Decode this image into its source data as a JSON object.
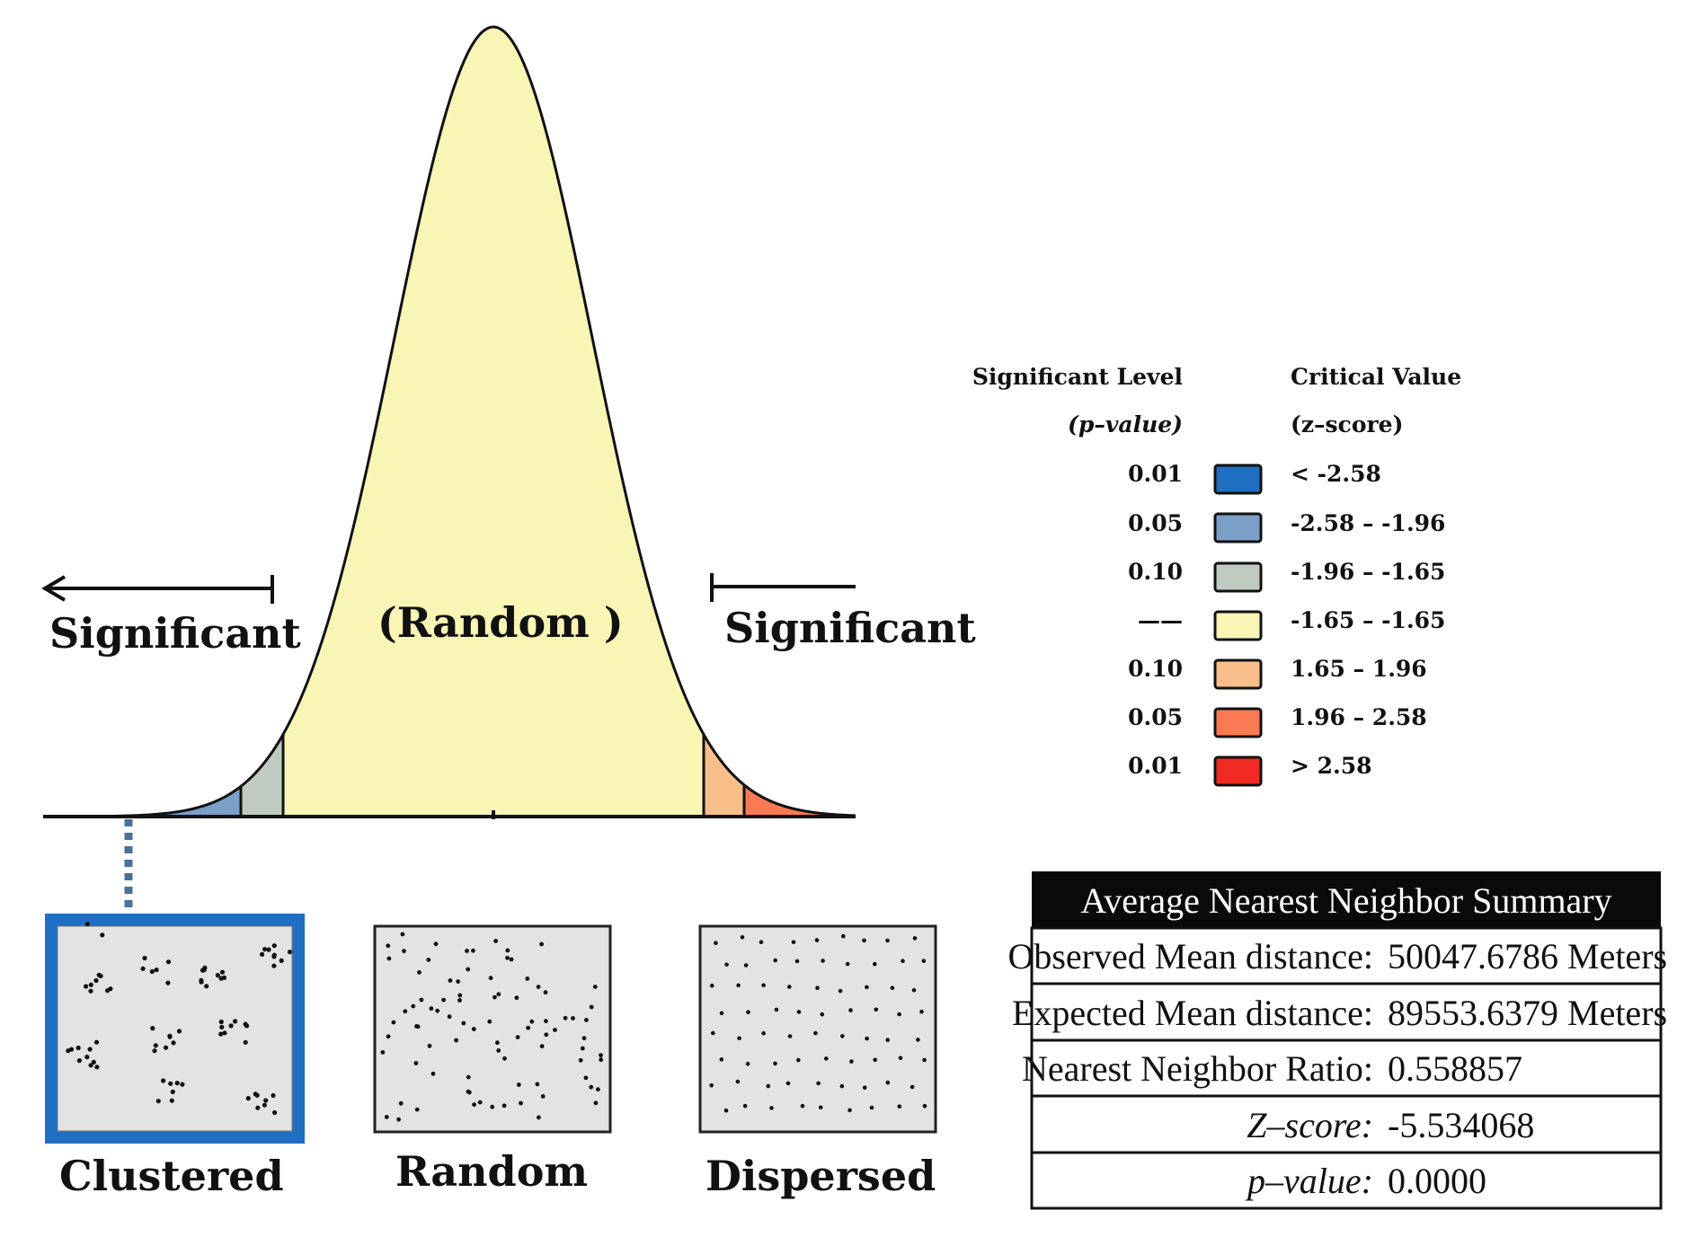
{
  "curve": {
    "center_label": "(Random )",
    "left_label": "Significant",
    "right_label": "Significant"
  },
  "legend": {
    "col1_header": "Significant Level",
    "col1_sub": "(p–value)",
    "col2_header": "Critical Value",
    "col2_sub": "(z–score)",
    "rows": [
      {
        "level": "0.01",
        "value": "< -2.58",
        "color": "#1f6fc3"
      },
      {
        "level": "0.05",
        "value": "-2.58 – -1.96",
        "color": "#7aa0c8"
      },
      {
        "level": "0.10",
        "value": "-1.96 – -1.65",
        "color": "#bfcbc0"
      },
      {
        "level": "——",
        "value": "-1.65 – -1.65",
        "color": "#f8f5b5"
      },
      {
        "level": "0.10",
        "value": "1.65 – 1.96",
        "color": "#f9bf8a"
      },
      {
        "level": "0.05",
        "value": "1.96 – 2.58",
        "color": "#f97a52"
      },
      {
        "level": "0.01",
        "value": "> 2.58",
        "color": "#ee2a22"
      }
    ]
  },
  "patterns": {
    "clustered": "Clustered",
    "random": "Random",
    "dispersed": "Dispersed"
  },
  "summary": {
    "title": "Average Nearest Neighbor Summary",
    "rows": [
      {
        "label": "Observed Mean distance:",
        "value": "50047.6786 Meters"
      },
      {
        "label": "Expected Mean distance:",
        "value": "89553.6379 Meters"
      },
      {
        "label": "Nearest Neighbor Ratio:",
        "value": "0.558857"
      },
      {
        "label": "Z–score:",
        "value": "-5.534068"
      },
      {
        "label": "p–value:",
        "value": "0.0000"
      }
    ]
  },
  "colors": {
    "curve_fill": "#f8f5b5",
    "blue_dark": "#1f6fc3",
    "blue_mid": "#7aa0c8",
    "grey_green": "#bfcbc0",
    "orange_light": "#f9bf8a",
    "orange_mid": "#f97a52",
    "red": "#ee2a22",
    "panel_fill": "#e3e3e3",
    "frame_blue": "#1f6fc3"
  }
}
